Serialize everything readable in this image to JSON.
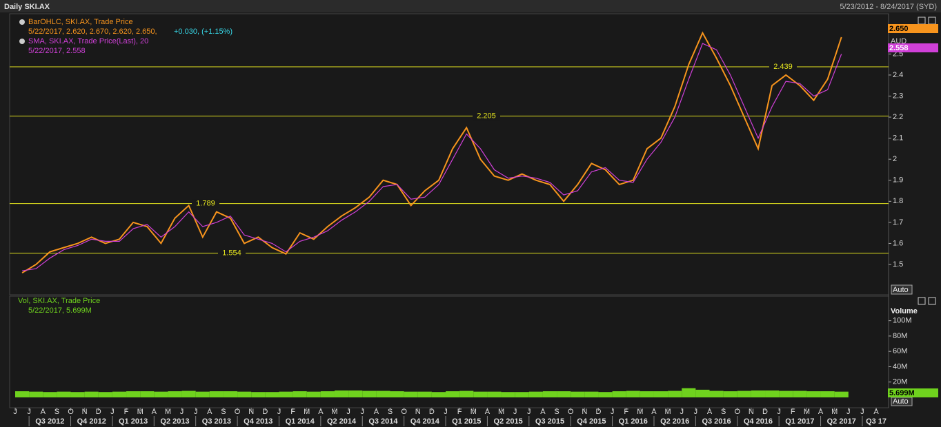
{
  "header": {
    "title": "Daily SKI.AX",
    "range": "5/23/2012 - 8/24/2017 (SYD)"
  },
  "chart_data": [
    {
      "type": "line",
      "categories": [
        "J",
        "J",
        "A",
        "S",
        "O",
        "N",
        "D",
        "J",
        "F",
        "M",
        "A",
        "M",
        "J",
        "J",
        "A",
        "S",
        "O",
        "N",
        "D",
        "J",
        "F",
        "M",
        "A",
        "M",
        "J",
        "J",
        "A",
        "S",
        "O",
        "N",
        "D",
        "J",
        "F",
        "M",
        "A",
        "M",
        "J",
        "J",
        "A",
        "S",
        "O",
        "N",
        "D",
        "J",
        "F",
        "M",
        "A",
        "M",
        "J",
        "J",
        "A",
        "S",
        "O",
        "N",
        "D",
        "J",
        "F",
        "M",
        "A",
        "M",
        "J",
        "J",
        "A"
      ],
      "quarters": [
        "Q3 2012",
        "Q4 2012",
        "Q1 2013",
        "Q2 2013",
        "Q3 2013",
        "Q4 2013",
        "Q1 2014",
        "Q2 2014",
        "Q3 2014",
        "Q4 2014",
        "Q1 2015",
        "Q2 2015",
        "Q3 2015",
        "Q4 2015",
        "Q1 2016",
        "Q2 2016",
        "Q3 2016",
        "Q4 2016",
        "Q1 2017",
        "Q2 2017",
        "Q3 17"
      ],
      "ylim": [
        1.356,
        2.691
      ],
      "yticks": [
        1.5,
        1.6,
        1.7,
        1.8,
        1.9,
        2,
        2.1,
        2.2,
        2.3,
        2.4,
        2.5
      ],
      "unit": "AUD",
      "scale_mode": "Auto",
      "levels": [
        2.439,
        2.205,
        1.789,
        1.554
      ],
      "level_color": "#e6e61e",
      "series": [
        {
          "name": "BarOHLC, SKI.AX, Trade Price",
          "color": "#f7941d",
          "legend_values": "5/22/2017, 2.620, 2.670, 2.620, 2.650,",
          "legend_change": "+0.030, (+1.15%)",
          "last_label": "2.650",
          "values": [
            1.46,
            1.5,
            1.56,
            1.58,
            1.6,
            1.63,
            1.6,
            1.62,
            1.7,
            1.68,
            1.6,
            1.72,
            1.78,
            1.63,
            1.75,
            1.72,
            1.6,
            1.63,
            1.58,
            1.55,
            1.65,
            1.62,
            1.68,
            1.73,
            1.77,
            1.82,
            1.9,
            1.88,
            1.78,
            1.85,
            1.9,
            2.05,
            2.15,
            2.0,
            1.92,
            1.9,
            1.93,
            1.9,
            1.88,
            1.8,
            1.88,
            1.98,
            1.95,
            1.88,
            1.9,
            2.05,
            2.1,
            2.25,
            2.45,
            2.6,
            2.48,
            2.35,
            2.2,
            2.05,
            2.35,
            2.4,
            2.35,
            2.28,
            2.38,
            2.58,
            null,
            null,
            null
          ]
        },
        {
          "name": "SMA, SKI.AX, Trade Price(Last), 20",
          "color": "#d040d8",
          "legend_values": "5/22/2017, 2.558",
          "last_label": "2.558",
          "values": [
            1.47,
            1.48,
            1.53,
            1.57,
            1.59,
            1.62,
            1.61,
            1.61,
            1.67,
            1.69,
            1.63,
            1.68,
            1.75,
            1.68,
            1.7,
            1.73,
            1.64,
            1.62,
            1.6,
            1.56,
            1.61,
            1.63,
            1.66,
            1.71,
            1.75,
            1.8,
            1.87,
            1.88,
            1.81,
            1.82,
            1.88,
            2.0,
            2.12,
            2.05,
            1.95,
            1.91,
            1.92,
            1.91,
            1.89,
            1.83,
            1.85,
            1.94,
            1.96,
            1.9,
            1.89,
            2.0,
            2.08,
            2.2,
            2.38,
            2.55,
            2.52,
            2.4,
            2.25,
            2.1,
            2.25,
            2.37,
            2.36,
            2.3,
            2.33,
            2.5,
            null,
            null,
            null
          ]
        }
      ]
    },
    {
      "type": "bar",
      "axis_title": "Volume",
      "scale_mode": "Auto",
      "ylim": [
        0,
        132000000
      ],
      "yticks": [
        {
          "value": 20000000,
          "label": "20M"
        },
        {
          "value": 40000000,
          "label": "40M"
        },
        {
          "value": 60000000,
          "label": "60M"
        },
        {
          "value": 80000000,
          "label": "80M"
        },
        {
          "value": 100000000,
          "label": "100M"
        }
      ],
      "series": [
        {
          "name": "Vol, SKI.AX, Trade Price",
          "color": "#6fd21e",
          "legend_values": "5/22/2017, 5.699M",
          "last_label": "5.699M",
          "values": [
            8000000,
            7500000,
            7000000,
            7500000,
            7000000,
            7500000,
            7000000,
            7500000,
            8000000,
            8000000,
            7500000,
            8000000,
            8500000,
            7500000,
            8000000,
            8000000,
            7500000,
            7000000,
            7000000,
            7500000,
            8000000,
            7500000,
            8000000,
            9000000,
            9000000,
            8500000,
            8500000,
            8000000,
            7500000,
            7500000,
            7000000,
            8000000,
            8500000,
            7500000,
            7500000,
            7000000,
            7000000,
            7500000,
            8000000,
            8000000,
            7500000,
            7500000,
            7000000,
            8000000,
            8500000,
            8000000,
            8000000,
            8500000,
            12000000,
            10000000,
            8500000,
            8000000,
            8500000,
            9000000,
            9000000,
            8500000,
            8500000,
            8000000,
            8000000,
            7500000,
            null,
            null,
            null
          ]
        }
      ]
    }
  ]
}
